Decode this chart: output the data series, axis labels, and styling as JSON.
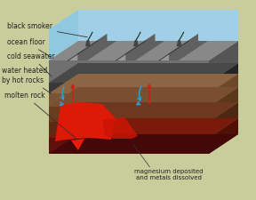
{
  "bg_color": "#c9cc9b",
  "water_top": "#b8dff0",
  "water_side": "#90c8e0",
  "water_back": "#a0d0e8",
  "gray_top": "#888888",
  "gray_mid": "#707070",
  "gray_dark": "#555555",
  "gray_side": "#666666",
  "black_layer": "#383838",
  "brown1_top": "#8c6545",
  "brown1_side": "#7a5535",
  "brown2_top": "#7a4e30",
  "brown2_side": "#683e20",
  "brown3_top": "#6e3820",
  "brown3_side": "#5c2a12",
  "red_bottom_top": "#7a1a0a",
  "red_bottom_side": "#601008",
  "molten": "#dd1a08",
  "molten2": "#cc1505",
  "arrow_blue": "#3399cc",
  "arrow_red": "#cc2211",
  "vent_color": "#444444",
  "smoke_color": "#222222",
  "label_color": "#222222",
  "arrow_color": "#333333",
  "ridge_light": "#999999",
  "ridge_dark": "#606060",
  "labels": {
    "black_smoker": "black smoker",
    "ocean_floor": "ocean floor",
    "cold_seawater": "cold seawater",
    "water_heated": "water heated\nby hot rocks",
    "molten_rock": "molten rock",
    "magnesium": "magnesium deposited\nand metals dissolved"
  }
}
